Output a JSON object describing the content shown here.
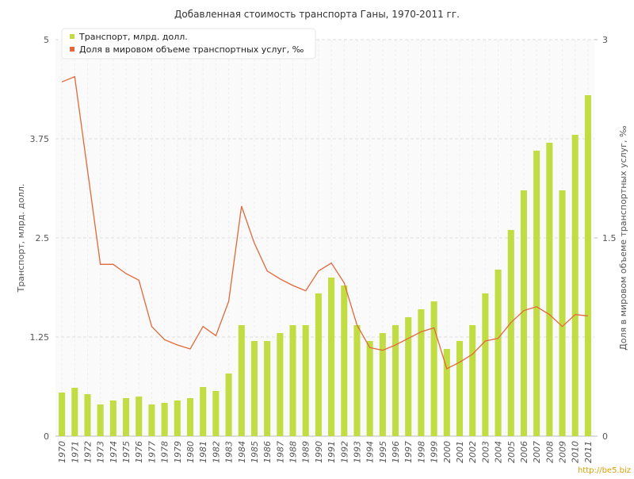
{
  "chart_data": {
    "type": "bar_line",
    "title": "Добавленная стоимость транспорта Ганы, 1970-2011 гг.",
    "y_label": "Транспорт, млрд. долл.",
    "y2_label": "Доля в мировом объеме транспортных услуг, ‰",
    "watermark": "http://be5.biz",
    "categories": [
      "1970",
      "1971",
      "1972",
      "1973",
      "1974",
      "1975",
      "1976",
      "1977",
      "1978",
      "1979",
      "1980",
      "1981",
      "1982",
      "1983",
      "1984",
      "1985",
      "1986",
      "1987",
      "1988",
      "1989",
      "1990",
      "1991",
      "1992",
      "1993",
      "1994",
      "1995",
      "1996",
      "1997",
      "1998",
      "1999",
      "2000",
      "2001",
      "2002",
      "2003",
      "2004",
      "2005",
      "2006",
      "2007",
      "2008",
      "2009",
      "2010",
      "2011"
    ],
    "series": [
      {
        "name": "Транспорт, млрд. долл.",
        "type": "bar",
        "color": "#c2dd44",
        "values": [
          0.55,
          0.61,
          0.53,
          0.4,
          0.45,
          0.48,
          0.5,
          0.4,
          0.42,
          0.45,
          0.48,
          0.62,
          0.57,
          0.79,
          1.4,
          1.2,
          1.2,
          1.3,
          1.4,
          1.4,
          1.8,
          2.0,
          1.9,
          1.4,
          1.2,
          1.3,
          1.4,
          1.5,
          1.6,
          1.7,
          1.1,
          1.2,
          1.4,
          1.8,
          2.1,
          2.6,
          3.1,
          3.6,
          3.7,
          3.1,
          3.8,
          4.3
        ]
      },
      {
        "name": "Доля в мировом объеме транспортных услуг, ‰",
        "type": "line",
        "axis": "y2",
        "color": "#e0683a",
        "values": [
          2.68,
          2.72,
          2.01,
          1.3,
          1.3,
          1.23,
          1.18,
          0.83,
          0.73,
          0.69,
          0.66,
          0.83,
          0.76,
          1.02,
          1.74,
          1.46,
          1.25,
          1.19,
          1.14,
          1.1,
          1.25,
          1.31,
          1.16,
          0.84,
          0.67,
          0.65,
          0.69,
          0.74,
          0.79,
          0.82,
          0.51,
          0.56,
          0.62,
          0.72,
          0.74,
          0.86,
          0.95,
          0.98,
          0.92,
          0.83,
          0.92,
          0.91
        ]
      }
    ],
    "ylim": [
      0,
      5
    ],
    "yticks": [
      0,
      1.25,
      2.5,
      3.75,
      5
    ],
    "y2lim": [
      0,
      3
    ],
    "y2ticks": [
      0,
      1.5,
      3
    ],
    "grid": true,
    "legend": "top-left"
  }
}
